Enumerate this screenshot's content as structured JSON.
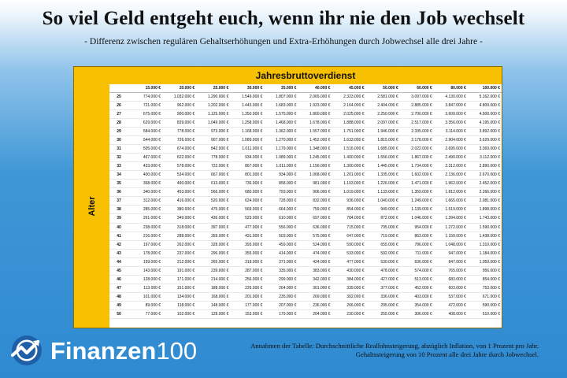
{
  "title": "So viel Geld entgeht euch, wenn ihr nie den Job wechselt",
  "subtitle": "- Differenz zwischen regulären Gehaltserhöhungen und Extra-Erhöhungen durch Jobwechsel alle drei Jahre -",
  "table": {
    "column_header": "Jahresbruttoverdienst",
    "row_header": "Alter",
    "salaries": [
      "15.000 €",
      "20.000 €",
      "25.000 €",
      "30.000 €",
      "35.000 €",
      "40.000 €",
      "45.000 €",
      "50.000 €",
      "60.000 €",
      "80.000 €",
      "100.000 €"
    ],
    "rows": [
      {
        "age": "25",
        "values": [
          "774.000 €",
          "1.032.000 €",
          "1.290.000 €",
          "1.549.000 €",
          "1.807.000 €",
          "2.065.000 €",
          "2.323.000 €",
          "2.581.000 €",
          "3.097.000 €",
          "4.130.000 €",
          "5.162.000 €"
        ]
      },
      {
        "age": "26",
        "values": [
          "721.000 €",
          "962.000 €",
          "1.202.000 €",
          "1.443.000 €",
          "1.683.000 €",
          "1.923.000 €",
          "2.164.000 €",
          "2.404.000 €",
          "2.885.000 €",
          "3.847.000 €",
          "4.809.000 €"
        ]
      },
      {
        "age": "27",
        "values": [
          "675.000 €",
          "900.000 €",
          "1.125.000 €",
          "1.350.000 €",
          "1.575.000 €",
          "1.800.000 €",
          "2.025.000 €",
          "2.250.000 €",
          "2.700.000 €",
          "3.600.000 €",
          "4.500.000 €"
        ]
      },
      {
        "age": "28",
        "values": [
          "629.000 €",
          "839.000 €",
          "1.049.000 €",
          "1.258.000 €",
          "1.468.000 €",
          "1.678.000 €",
          "1.888.000 €",
          "2.097.000 €",
          "2.517.000 €",
          "3.356.000 €",
          "4.195.000 €"
        ]
      },
      {
        "age": "29",
        "values": [
          "584.000 €",
          "778.000 €",
          "973.000 €",
          "1.168.000 €",
          "1.362.000 €",
          "1.557.000 €",
          "1.751.000 €",
          "1.946.000 €",
          "2.335.000 €",
          "3.114.000 €",
          "3.892.000 €"
        ]
      },
      {
        "age": "30",
        "values": [
          "544.000 €",
          "726.000 €",
          "907.000 €",
          "1.089.000 €",
          "1.270.000 €",
          "1.452.000 €",
          "1.633.000 €",
          "1.815.000 €",
          "2.178.000 €",
          "2.904.000 €",
          "3.629.000 €"
        ]
      },
      {
        "age": "31",
        "values": [
          "505.000 €",
          "674.000 €",
          "842.000 €",
          "1.011.000 €",
          "1.179.000 €",
          "1.348.000 €",
          "1.516.000 €",
          "1.685.000 €",
          "2.022.000 €",
          "2.695.000 €",
          "3.369.000 €"
        ]
      },
      {
        "age": "32",
        "values": [
          "467.000 €",
          "622.000 €",
          "778.000 €",
          "934.000 €",
          "1.089.000 €",
          "1.245.000 €",
          "1.400.000 €",
          "1.556.000 €",
          "1.867.000 €",
          "2.490.000 €",
          "3.112.000 €"
        ]
      },
      {
        "age": "33",
        "values": [
          "433.000 €",
          "578.000 €",
          "722.000 €",
          "867.000 €",
          "1.011.000 €",
          "1.156.000 €",
          "1.300.000 €",
          "1.445.000 €",
          "1.734.000 €",
          "2.312.000 €",
          "2.890.000 €"
        ]
      },
      {
        "age": "34",
        "values": [
          "400.000 €",
          "534.000 €",
          "667.000 €",
          "801.000 €",
          "934.000 €",
          "1.068.000 €",
          "1.201.000 €",
          "1.335.000 €",
          "1.602.000 €",
          "2.136.000 €",
          "2.670.000 €"
        ]
      },
      {
        "age": "35",
        "values": [
          "368.000 €",
          "490.000 €",
          "613.000 €",
          "736.000 €",
          "858.000 €",
          "981.000 €",
          "1.103.000 €",
          "1.226.000 €",
          "1.471.000 €",
          "1.962.000 €",
          "2.452.000 €"
        ]
      },
      {
        "age": "36",
        "values": [
          "340.000 €",
          "453.000 €",
          "566.000 €",
          "680.000 €",
          "793.000 €",
          "906.000 €",
          "1.019.000 €",
          "1.133.000 €",
          "1.359.000 €",
          "1.812.000 €",
          "2.266.000 €"
        ]
      },
      {
        "age": "37",
        "values": [
          "312.000 €",
          "416.000 €",
          "520.000 €",
          "624.000 €",
          "728.000 €",
          "832.000 €",
          "936.000 €",
          "1.040.000 €",
          "1.249.000 €",
          "1.665.000 €",
          "2.081.000 €"
        ]
      },
      {
        "age": "38",
        "values": [
          "285.000 €",
          "380.000 €",
          "475.000 €",
          "569.000 €",
          "664.000 €",
          "759.000 €",
          "854.000 €",
          "949.000 €",
          "1.139.000 €",
          "1.519.000 €",
          "1.898.000 €"
        ]
      },
      {
        "age": "39",
        "values": [
          "261.000 €",
          "349.000 €",
          "436.000 €",
          "523.000 €",
          "610.000 €",
          "697.000 €",
          "784.000 €",
          "872.000 €",
          "1.046.000 €",
          "1.394.000 €",
          "1.743.000 €"
        ]
      },
      {
        "age": "40",
        "values": [
          "238.000 €",
          "318.000 €",
          "397.000 €",
          "477.000 €",
          "556.000 €",
          "636.000 €",
          "715.000 €",
          "795.000 €",
          "954.000 €",
          "1.272.000 €",
          "1.590.000 €"
        ]
      },
      {
        "age": "41",
        "values": [
          "216.000 €",
          "288.000 €",
          "359.000 €",
          "431.000 €",
          "503.000 €",
          "575.000 €",
          "647.000 €",
          "719.000 €",
          "863.000 €",
          "1.150.000 €",
          "1.438.000 €"
        ]
      },
      {
        "age": "42",
        "values": [
          "197.000 €",
          "262.000 €",
          "328.000 €",
          "393.000 €",
          "459.000 €",
          "524.000 €",
          "590.000 €",
          "655.000 €",
          "786.000 €",
          "1.048.000 €",
          "1.310.000 €"
        ]
      },
      {
        "age": "43",
        "values": [
          "178.000 €",
          "237.000 €",
          "296.000 €",
          "355.000 €",
          "414.000 €",
          "474.000 €",
          "533.000 €",
          "592.000 €",
          "711.000 €",
          "947.000 €",
          "1.184.000 €"
        ]
      },
      {
        "age": "44",
        "values": [
          "159.000 €",
          "212.000 €",
          "265.000 €",
          "318.000 €",
          "371.000 €",
          "424.000 €",
          "477.000 €",
          "530.000 €",
          "636.000 €",
          "847.000 €",
          "1.059.000 €"
        ]
      },
      {
        "age": "45",
        "values": [
          "143.000 €",
          "191.000 €",
          "239.000 €",
          "287.000 €",
          "335.000 €",
          "383.000 €",
          "430.000 €",
          "478.000 €",
          "574.000 €",
          "765.000 €",
          "956.000 €"
        ]
      },
      {
        "age": "46",
        "values": [
          "128.000 €",
          "171.000 €",
          "214.000 €",
          "256.000 €",
          "299.000 €",
          "342.000 €",
          "384.000 €",
          "427.000 €",
          "513.000 €",
          "683.000 €",
          "854.000 €"
        ]
      },
      {
        "age": "47",
        "values": [
          "113.000 €",
          "151.000 €",
          "188.000 €",
          "226.000 €",
          "264.000 €",
          "301.000 €",
          "339.000 €",
          "377.000 €",
          "452.000 €",
          "603.000 €",
          "753.000 €"
        ]
      },
      {
        "age": "48",
        "values": [
          "101.000 €",
          "134.000 €",
          "168.000 €",
          "201.000 €",
          "235.000 €",
          "269.000 €",
          "302.000 €",
          "336.000 €",
          "403.000 €",
          "537.000 €",
          "671.000 €"
        ]
      },
      {
        "age": "49",
        "values": [
          "89.000 €",
          "118.000 €",
          "148.000 €",
          "177.000 €",
          "207.000 €",
          "236.000 €",
          "266.000 €",
          "295.000 €",
          "354.000 €",
          "472.000 €",
          "590.000 €"
        ]
      },
      {
        "age": "50",
        "values": [
          "77.000 €",
          "102.000 €",
          "128.000 €",
          "153.000 €",
          "179.000 €",
          "204.000 €",
          "230.000 €",
          "255.000 €",
          "306.000 €",
          "408.000 €",
          "510.000 €"
        ]
      }
    ]
  },
  "logo": {
    "name": "Finanzen",
    "number": "100"
  },
  "note": {
    "line1": "Annahmen der Tabelle: Durchschnittliche Reallohnsteigerung, abzüglich Inflation, von 1 Prozent pro Jahr.",
    "line2": "Gehaltssteigerung von 10 Prozent alle drei Jahre durch Jobwechsel."
  },
  "colors": {
    "accent": "#f7c000",
    "background": "#2f8ad1",
    "logo_blue": "#1f5fa8"
  }
}
